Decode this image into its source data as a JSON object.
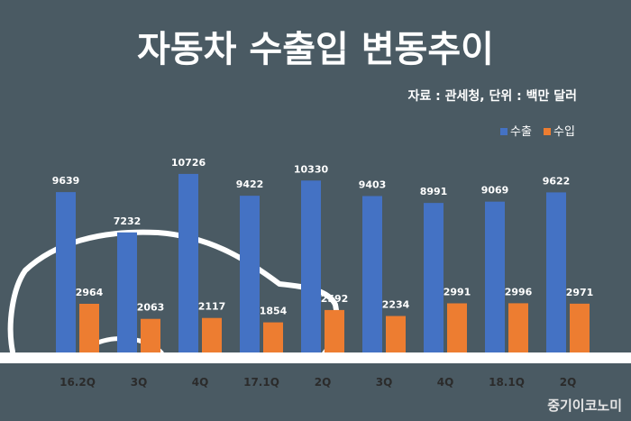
{
  "chart_data": {
    "type": "bar",
    "title": "자동차 수출입 변동추이",
    "subtitle": "자료 : 관세청, 단위 : 백만 달러",
    "categories": [
      "16.2Q",
      "3Q",
      "4Q",
      "17.1Q",
      "2Q",
      "3Q",
      "4Q",
      "18.1Q",
      "2Q"
    ],
    "series": [
      {
        "name": "수출",
        "color": "#4472c4",
        "values": [
          9639,
          7232,
          10726,
          9422,
          10330,
          9403,
          8991,
          9069,
          9622
        ]
      },
      {
        "name": "수입",
        "color": "#ed7d31",
        "values": [
          2964,
          2063,
          2117,
          1854,
          2592,
          2234,
          2991,
          2996,
          2971
        ]
      }
    ],
    "ylim": [
      0,
      12500
    ],
    "legend_position": "top-right",
    "grid": false
  },
  "watermark": "중기이코노미"
}
